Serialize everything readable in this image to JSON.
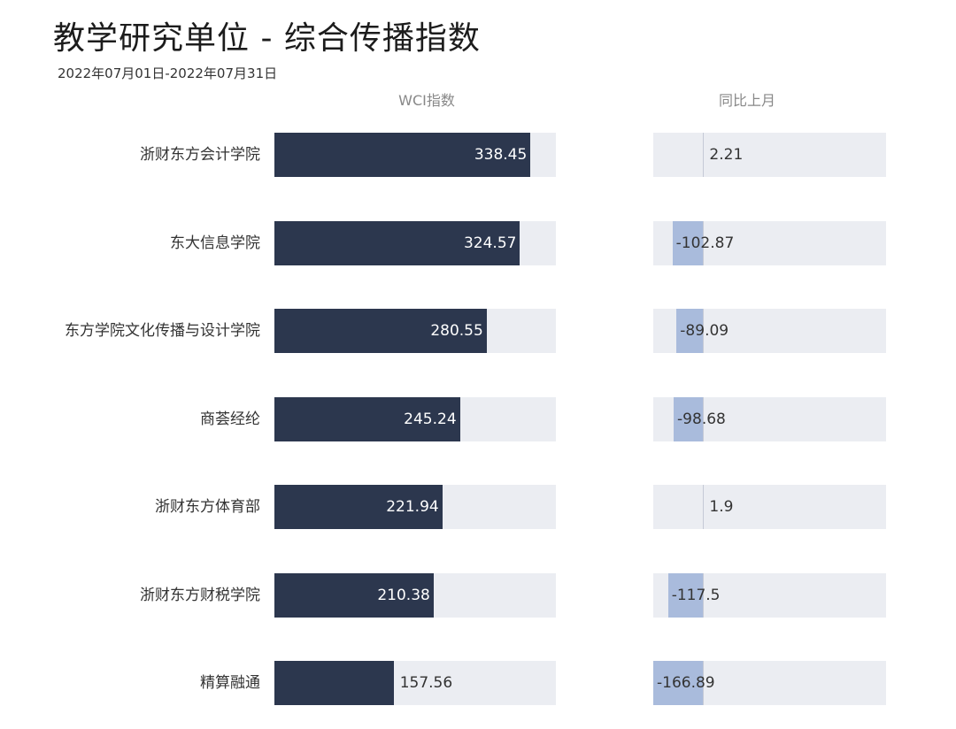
{
  "header": {
    "title": "教学研究单位 - 综合传播指数",
    "subtitle": "2022年07月01日-2022年07月31日"
  },
  "columns": {
    "main": "WCI指数",
    "yoy": "同比上月"
  },
  "chart_data": {
    "type": "bar",
    "title": "教学研究单位 - 综合传播指数",
    "subtitle": "2022年07月01日-2022年07月31日",
    "categories": [
      "浙财东方会计学院",
      "东大信息学院",
      "东方学院文化传播与设计学院",
      "商荟经纶",
      "浙财东方体育部",
      "浙财东方财税学院",
      "精算融通"
    ],
    "series": [
      {
        "name": "WCI指数",
        "values": [
          338.45,
          324.57,
          280.55,
          245.24,
          221.94,
          210.38,
          157.56
        ],
        "color": "#2c374e",
        "xlim": [
          0,
          372
        ]
      },
      {
        "name": "同比上月",
        "values": [
          2.21,
          -102.87,
          -89.09,
          -98.68,
          1.9,
          -117.5,
          -166.89
        ],
        "color": "#a9bbdc",
        "xlim": [
          -166.89,
          611
        ]
      }
    ],
    "value_labels": {
      "main": [
        "338.45",
        "324.57",
        "280.55",
        "245.24",
        "221.94",
        "210.38",
        "157.56"
      ],
      "yoy": [
        "2.21",
        "-102.87",
        "-89.09",
        "-98.68",
        "1.9",
        "-117.5",
        "-166.89"
      ]
    }
  },
  "colors": {
    "main_bar": "#2c374e",
    "yoy_bar": "#a9bbdc",
    "track": "#ebedf2"
  }
}
